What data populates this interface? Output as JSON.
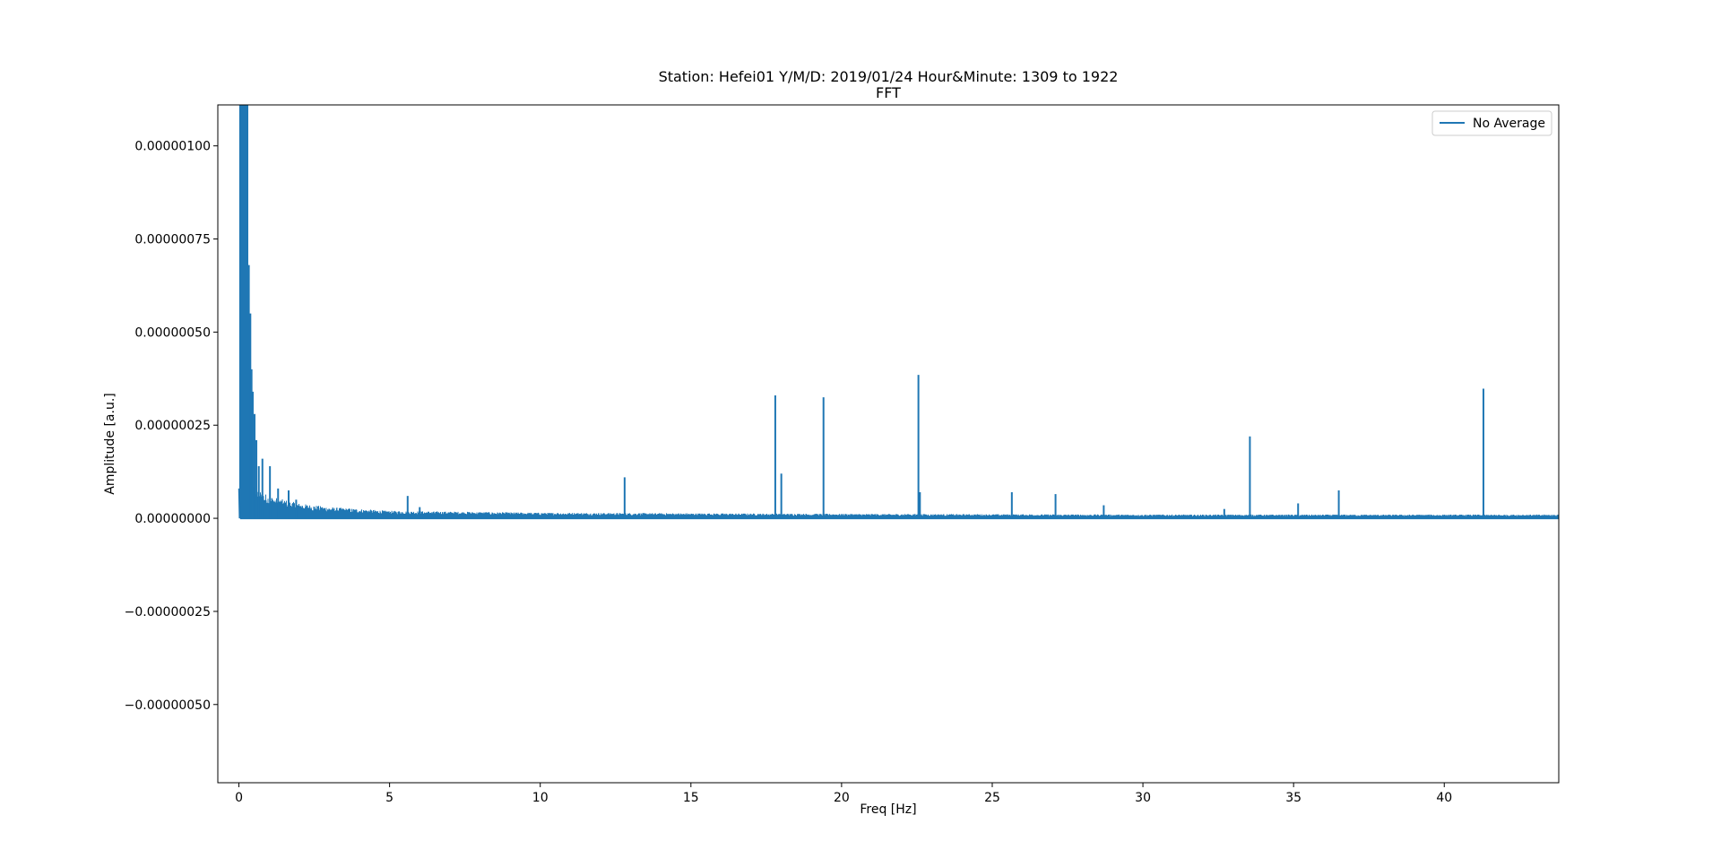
{
  "chart_data": {
    "type": "line",
    "title": "Station: Hefei01 Y/M/D: 2019/01/24 Hour&Minute: 1309 to 1922",
    "subtitle": "FFT",
    "xlabel": "Freq [Hz]",
    "ylabel": "Amplitude [a.u.]",
    "xlim": [
      -0.7,
      43.8
    ],
    "ylim": [
      -7.1e-07,
      1.11e-06
    ],
    "x_ticks": [
      0,
      5,
      10,
      15,
      20,
      25,
      30,
      35,
      40
    ],
    "x_tick_labels": [
      "0",
      "5",
      "10",
      "15",
      "20",
      "25",
      "30",
      "35",
      "40"
    ],
    "y_ticks": [
      -5e-07,
      -2.5e-07,
      0,
      2.5e-07,
      5e-07,
      7.5e-07,
      1e-06
    ],
    "y_tick_labels": [
      "−0.00000050",
      "−0.00000025",
      "0.00000000",
      "0.00000025",
      "0.00000050",
      "0.00000075",
      "0.00000100"
    ],
    "grid": false,
    "legend": {
      "position": "top-right"
    },
    "series": [
      {
        "name": "No Average",
        "color": "#1f77b4",
        "noise_floor": [
          [
            0.3,
            1.1e-07
          ],
          [
            0.6,
            8e-08
          ],
          [
            1.0,
            6e-08
          ],
          [
            1.5,
            5e-08
          ],
          [
            2.0,
            4e-08
          ],
          [
            3.0,
            3e-08
          ],
          [
            5.0,
            2e-08
          ],
          [
            10.0,
            1.5e-08
          ],
          [
            20.0,
            1.2e-08
          ],
          [
            30.0,
            1e-08
          ],
          [
            43.8,
            1e-08
          ]
        ],
        "peaks": [
          [
            0.05,
            1.1e-06
          ],
          [
            0.1,
            1.1e-06
          ],
          [
            0.15,
            1.1e-06
          ],
          [
            0.2,
            1.1e-06
          ],
          [
            0.25,
            1.1e-06
          ],
          [
            0.28,
            7.2e-07
          ],
          [
            0.33,
            6.8e-07
          ],
          [
            0.38,
            5.5e-07
          ],
          [
            0.42,
            4e-07
          ],
          [
            0.46,
            3.4e-07
          ],
          [
            0.52,
            2.8e-07
          ],
          [
            0.58,
            2.1e-07
          ],
          [
            0.66,
            1.4e-07
          ],
          [
            0.78,
            1.6e-07
          ],
          [
            1.03,
            1.4e-07
          ],
          [
            1.3,
            8e-08
          ],
          [
            1.65,
            7.5e-08
          ],
          [
            1.9,
            5e-08
          ],
          [
            5.6,
            6e-08
          ],
          [
            6.0,
            3e-08
          ],
          [
            12.8,
            1.1e-07
          ],
          [
            17.8,
            3.3e-07
          ],
          [
            18.0,
            1.2e-07
          ],
          [
            19.4,
            3.25e-07
          ],
          [
            22.55,
            3.85e-07
          ],
          [
            22.6,
            7e-08
          ],
          [
            25.65,
            7e-08
          ],
          [
            27.1,
            6.5e-08
          ],
          [
            28.7,
            3.5e-08
          ],
          [
            32.7,
            2.5e-08
          ],
          [
            33.55,
            2.2e-07
          ],
          [
            35.15,
            4e-08
          ],
          [
            36.5,
            7.5e-08
          ],
          [
            41.3,
            3.48e-07
          ]
        ]
      }
    ]
  }
}
